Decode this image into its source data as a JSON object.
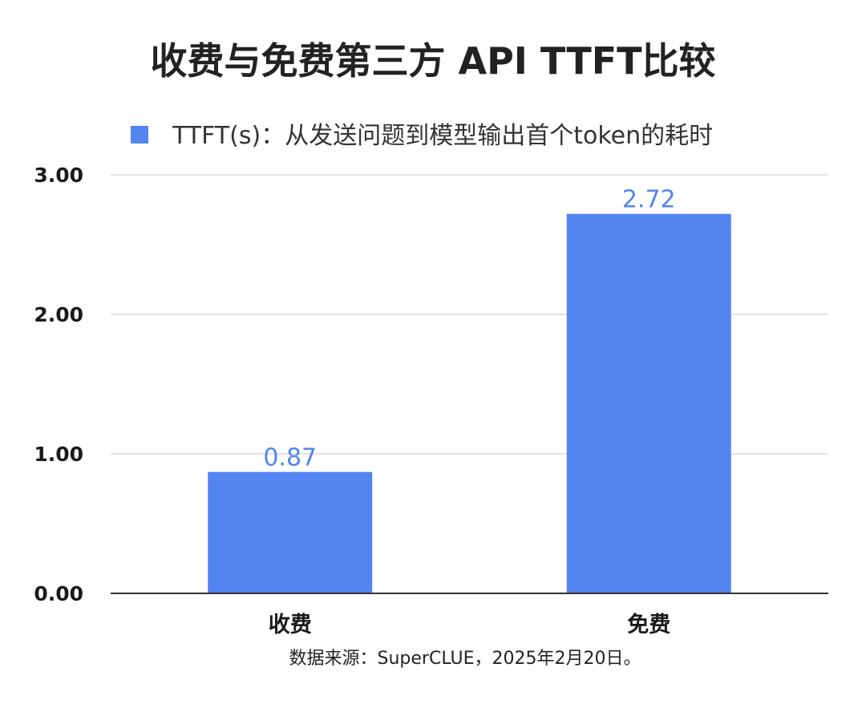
{
  "chart_data": {
    "type": "bar",
    "title": "收费与免费第三方 API TTFT比较",
    "categories": [
      "收费",
      "免费"
    ],
    "series": [
      {
        "name": "TTFT(s)：从发送问题到模型输出首个token的耗时",
        "values": [
          0.87,
          2.72
        ],
        "color": "#5384F0"
      }
    ],
    "value_labels": [
      "0.87",
      "2.72"
    ],
    "y_ticks": [
      "0.00",
      "1.00",
      "2.00",
      "3.00"
    ],
    "ylim": [
      0,
      3
    ],
    "grid": true,
    "legend_position": "top",
    "xlabel": "",
    "ylabel": ""
  },
  "footnote": "数据来源：SuperCLUE，2025年2月20日。"
}
